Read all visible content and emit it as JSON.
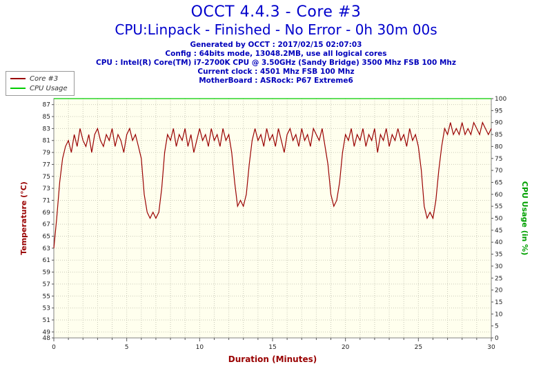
{
  "header": {
    "title": "OCCT 4.4.3 - Core #3",
    "subtitle": "CPU:Linpack - Finished - No Error - 0h 30m 00s",
    "info_lines": [
      "Generated by OCCT : 2017/02/15 02:07:03",
      "Config : 64bits mode, 13048.2MB, use all logical cores",
      "CPU : Intel(R) Core(TM) i7-2700K CPU @ 3.50GHz (Sandy Bridge) 3500 Mhz FSB 100 Mhz",
      "Current clock : 4501 Mhz FSB 100 Mhz",
      "MotherBoard : ASRock: P67 Extreme6"
    ]
  },
  "legend": {
    "items": [
      {
        "label": "Core #3",
        "color": "#990000"
      },
      {
        "label": "CPU Usage",
        "color": "#00cc00"
      }
    ]
  },
  "chart_data": {
    "type": "line",
    "title": "OCCT 4.4.3 - Core #3",
    "xlabel": "Duration (Minutes)",
    "ylabel_left": "Temperature (°C)",
    "ylabel_right": "CPU Usage (in %)",
    "xlim": [
      0,
      30
    ],
    "ylim_left": [
      48,
      88
    ],
    "ylim_right": [
      0,
      100
    ],
    "x_ticks": [
      0,
      5,
      10,
      15,
      20,
      25,
      30
    ],
    "y_ticks_left": [
      87,
      85,
      83,
      81,
      79,
      77,
      75,
      73,
      71,
      69,
      67,
      65,
      63,
      61,
      59,
      57,
      55,
      53,
      51,
      49,
      48
    ],
    "y_ticks_right": [
      100,
      95,
      90,
      85,
      80,
      75,
      70,
      65,
      60,
      55,
      50,
      45,
      40,
      35,
      30,
      25,
      20,
      15,
      10,
      5,
      0
    ],
    "grid": true,
    "plot_bg": "#ffffee",
    "grid_color": "#c9c9b8",
    "axis_colors": {
      "left": "#990000",
      "right": "#00a000",
      "bottom": "#990000"
    },
    "series": [
      {
        "name": "Core #3",
        "axis": "left",
        "color": "#990000",
        "x": [
          0,
          0.2,
          0.4,
          0.6,
          0.8,
          1,
          1.2,
          1.4,
          1.6,
          1.8,
          2,
          2.2,
          2.4,
          2.6,
          2.8,
          3,
          3.2,
          3.4,
          3.6,
          3.8,
          4,
          4.2,
          4.4,
          4.6,
          4.8,
          5,
          5.2,
          5.4,
          5.6,
          5.8,
          6,
          6.2,
          6.4,
          6.6,
          6.8,
          7,
          7.2,
          7.4,
          7.6,
          7.8,
          8,
          8.2,
          8.4,
          8.6,
          8.8,
          9,
          9.2,
          9.4,
          9.6,
          9.8,
          10,
          10.2,
          10.4,
          10.6,
          10.8,
          11,
          11.2,
          11.4,
          11.6,
          11.8,
          12,
          12.2,
          12.4,
          12.6,
          12.8,
          13,
          13.2,
          13.4,
          13.6,
          13.8,
          14,
          14.2,
          14.4,
          14.6,
          14.8,
          15,
          15.2,
          15.4,
          15.6,
          15.8,
          16,
          16.2,
          16.4,
          16.6,
          16.8,
          17,
          17.2,
          17.4,
          17.6,
          17.8,
          18,
          18.2,
          18.4,
          18.6,
          18.8,
          19,
          19.2,
          19.4,
          19.6,
          19.8,
          20,
          20.2,
          20.4,
          20.6,
          20.8,
          21,
          21.2,
          21.4,
          21.6,
          21.8,
          22,
          22.2,
          22.4,
          22.6,
          22.8,
          23,
          23.2,
          23.4,
          23.6,
          23.8,
          24,
          24.2,
          24.4,
          24.6,
          24.8,
          25,
          25.2,
          25.4,
          25.6,
          25.8,
          26,
          26.2,
          26.4,
          26.6,
          26.8,
          27,
          27.2,
          27.4,
          27.6,
          27.8,
          28,
          28.2,
          28.4,
          28.6,
          28.8,
          29,
          29.2,
          29.4,
          29.6,
          29.8,
          30
        ],
        "y": [
          63,
          68,
          74,
          78,
          80,
          81,
          79,
          82,
          80,
          83,
          81,
          80,
          82,
          79,
          82,
          83,
          81,
          80,
          82,
          81,
          83,
          80,
          82,
          81,
          79,
          82,
          83,
          81,
          82,
          80,
          78,
          72,
          69,
          68,
          69,
          68,
          69,
          73,
          79,
          82,
          81,
          83,
          80,
          82,
          81,
          83,
          80,
          82,
          79,
          81,
          83,
          81,
          82,
          80,
          83,
          81,
          82,
          80,
          83,
          81,
          82,
          79,
          74,
          70,
          71,
          70,
          72,
          77,
          81,
          83,
          81,
          82,
          80,
          83,
          81,
          82,
          80,
          83,
          81,
          79,
          82,
          83,
          81,
          82,
          80,
          83,
          81,
          82,
          80,
          83,
          82,
          81,
          83,
          80,
          77,
          72,
          70,
          71,
          74,
          79,
          82,
          81,
          83,
          80,
          82,
          81,
          83,
          80,
          82,
          81,
          83,
          79,
          82,
          81,
          83,
          80,
          82,
          81,
          83,
          81,
          82,
          80,
          83,
          81,
          82,
          80,
          76,
          70,
          68,
          69,
          68,
          71,
          76,
          80,
          83,
          82,
          84,
          82,
          83,
          82,
          84,
          82,
          83,
          82,
          84,
          83,
          82,
          84,
          83,
          82,
          83
        ]
      },
      {
        "name": "CPU Usage",
        "axis": "right",
        "color": "#00cc00",
        "x": [
          0,
          30
        ],
        "y": [
          100,
          100
        ]
      }
    ]
  }
}
